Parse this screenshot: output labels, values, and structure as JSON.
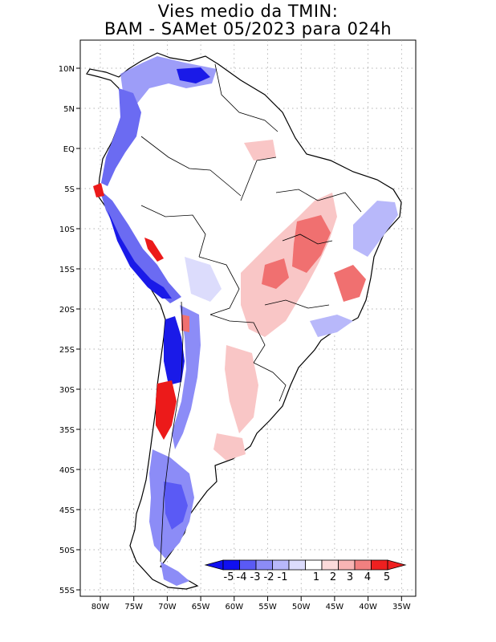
{
  "title": {
    "line1": "Vies medio da TMIN:",
    "line2": "BAM - SAMet 05/2023  para 024h"
  },
  "lat_labels": [
    "10N",
    "5N",
    "EQ",
    "5S",
    "10S",
    "15S",
    "20S",
    "25S",
    "30S",
    "35S",
    "40S",
    "45S",
    "50S",
    "55S"
  ],
  "lon_labels": [
    "80W",
    "75W",
    "70W",
    "65W",
    "60W",
    "55W",
    "50W",
    "45W",
    "40W",
    "35W"
  ],
  "colorbar": {
    "labels": [
      "-5",
      "-4",
      "-3",
      "-2",
      "-1",
      "1",
      "2",
      "3",
      "4",
      "5"
    ],
    "colors": [
      "#1010f0",
      "#5a5af5",
      "#8c8cf7",
      "#b8b8fa",
      "#dcdcfc",
      "#ffffff",
      "#fcdada",
      "#f8b4b4",
      "#f28080",
      "#ee2020"
    ]
  },
  "colors": {
    "strong_blue": "#1a1ae8",
    "medium_blue": "#6b6bf2",
    "light_blue": "#c4c8f8",
    "light_red": "#f9c6c6",
    "medium_red": "#f07070",
    "strong_red": "#ec1a1a"
  }
}
